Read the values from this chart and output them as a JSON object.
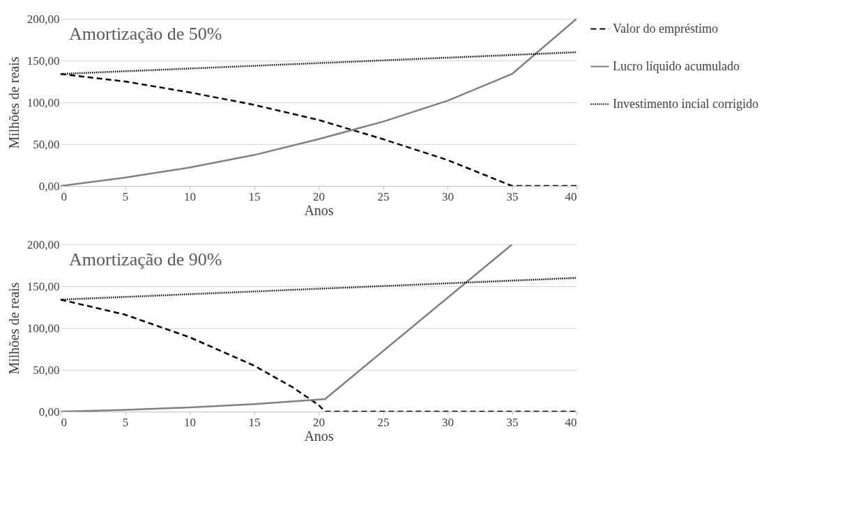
{
  "chart_data": [
    {
      "type": "line",
      "title": "Amortização de 50%",
      "xlabel": "Anos",
      "ylabel": "Milhões de reais",
      "xlim": [
        0,
        40
      ],
      "xticks": [
        0,
        5,
        10,
        15,
        20,
        25,
        30,
        35,
        40
      ],
      "ylim": [
        0,
        200
      ],
      "yticks": [
        {
          "value": 0,
          "label": "0,00"
        },
        {
          "value": 50,
          "label": "50,00"
        },
        {
          "value": 100,
          "label": "100,00"
        },
        {
          "value": 150,
          "label": "150,00"
        },
        {
          "value": 200,
          "label": "200,00"
        }
      ],
      "grid": "y",
      "legend": "right",
      "series": [
        {
          "name": "Valor do empréstimo",
          "color": "#000000",
          "line_style": "dashed",
          "x": [
            0,
            5,
            10,
            15,
            20,
            25,
            30,
            35,
            40
          ],
          "values": [
            134,
            125,
            112,
            97,
            79,
            56,
            31,
            0,
            0
          ]
        },
        {
          "name": "Lucro líquido acumulado",
          "color": "#808080",
          "line_style": "solid",
          "x": [
            0,
            5,
            10,
            15,
            20,
            25,
            30,
            35,
            40
          ],
          "values": [
            0,
            10,
            22,
            37,
            56,
            77,
            102,
            134,
            200
          ]
        },
        {
          "name": "Investimento incial corrigido",
          "color": "#000000",
          "line_style": "dotted",
          "x": [
            0,
            10,
            20,
            30,
            40
          ],
          "values": [
            134,
            140.5,
            147,
            153.5,
            160
          ]
        }
      ]
    },
    {
      "type": "line",
      "title": "Amortização de 90%",
      "xlabel": "Anos",
      "ylabel": "Milhões de reais",
      "xlim": [
        0,
        40
      ],
      "xticks": [
        0,
        5,
        10,
        15,
        20,
        25,
        30,
        35,
        40
      ],
      "ylim": [
        0,
        200
      ],
      "yticks": [
        {
          "value": 0,
          "label": "0,00"
        },
        {
          "value": 50,
          "label": "50,00"
        },
        {
          "value": 100,
          "label": "100,00"
        },
        {
          "value": 150,
          "label": "150,00"
        },
        {
          "value": 200,
          "label": "200,00"
        }
      ],
      "grid": "y",
      "legend": "right",
      "series": [
        {
          "name": "Valor do empréstimo",
          "color": "#000000",
          "line_style": "dashed",
          "x": [
            0,
            5,
            10,
            15,
            18,
            20,
            20.5,
            30,
            40
          ],
          "values": [
            134,
            116,
            89,
            55,
            29,
            8,
            0,
            0,
            0
          ]
        },
        {
          "name": "Lucro líquido acumulado",
          "color": "#808080",
          "line_style": "solid",
          "x": [
            0,
            5,
            10,
            15,
            20.5,
            35
          ],
          "values": [
            0,
            2,
            5,
            9,
            15,
            200
          ]
        },
        {
          "name": "Investimento incial corrigido",
          "color": "#000000",
          "line_style": "dotted",
          "x": [
            0,
            10,
            20,
            30,
            40
          ],
          "values": [
            134,
            140.5,
            147,
            153.5,
            160
          ]
        }
      ]
    }
  ]
}
